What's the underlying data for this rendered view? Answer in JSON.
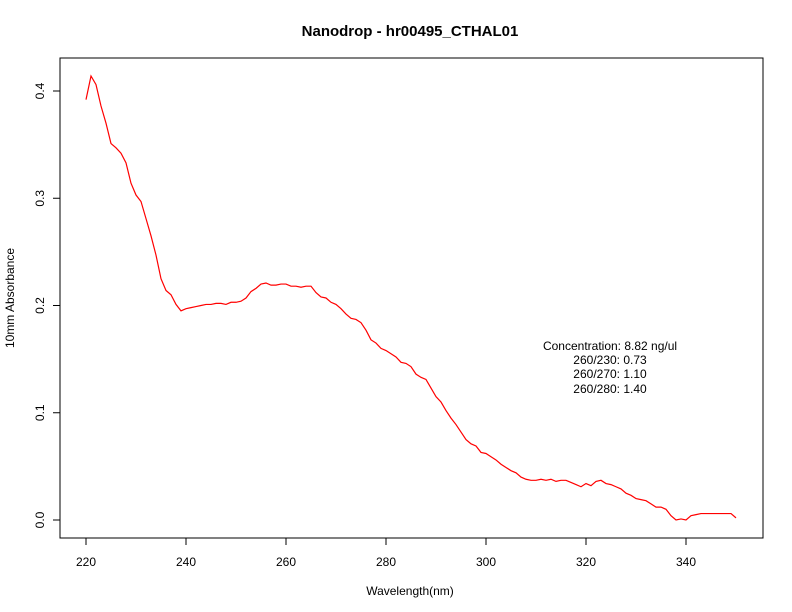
{
  "chart_data": {
    "type": "line",
    "title": "Nanodrop - hr00495_CTHAL01",
    "xlabel": "Wavelength(nm)",
    "ylabel": "10mm Absorbance",
    "xlim": [
      220,
      350
    ],
    "ylim": [
      0.0,
      0.42
    ],
    "xticks": [
      220,
      240,
      260,
      280,
      300,
      320,
      340
    ],
    "xtick_labels": [
      "220",
      "240",
      "260",
      "280",
      "300",
      "320",
      "340"
    ],
    "yticks": [
      0.0,
      0.1,
      0.2,
      0.3,
      0.4
    ],
    "ytick_labels": [
      "0.0",
      "0.1",
      "0.2",
      "0.3",
      "0.4"
    ],
    "grid": false,
    "line_color": "#ff0000",
    "annotation": [
      "Concentration: 8.82 ng/ul",
      "260/230: 0.73",
      "260/270: 1.10",
      "260/280: 1.40"
    ],
    "series": [
      {
        "x": [
          220,
          221,
          222,
          223,
          224,
          225,
          226,
          227,
          228,
          229,
          230,
          231,
          232,
          233,
          234,
          235,
          236,
          237,
          238,
          239,
          240,
          241,
          242,
          243,
          244,
          245,
          246,
          247,
          248,
          249,
          250,
          251,
          252,
          253,
          254,
          255,
          256,
          257,
          258,
          259,
          260,
          261,
          262,
          263,
          264,
          265,
          266,
          267,
          268,
          269,
          270,
          271,
          272,
          273,
          274,
          275,
          276,
          277,
          278,
          279,
          280,
          281,
          282,
          283,
          284,
          285,
          286,
          287,
          288,
          289,
          290,
          291,
          292,
          293,
          294,
          295,
          296,
          297,
          298,
          299,
          300,
          301,
          302,
          303,
          304,
          305,
          306,
          307,
          308,
          309,
          310,
          311,
          312,
          313,
          314,
          315,
          316,
          317,
          318,
          319,
          320,
          321,
          322,
          323,
          324,
          325,
          326,
          327,
          328,
          329,
          330,
          331,
          332,
          333,
          334,
          335,
          336,
          337,
          338,
          339,
          340,
          341,
          342,
          343,
          344,
          345,
          346,
          347,
          348,
          349,
          350
        ],
        "y": [
          0.392,
          0.414,
          0.406,
          0.386,
          0.37,
          0.351,
          0.347,
          0.342,
          0.333,
          0.314,
          0.303,
          0.297,
          0.281,
          0.265,
          0.247,
          0.225,
          0.214,
          0.21,
          0.201,
          0.195,
          0.197,
          0.198,
          0.199,
          0.2,
          0.201,
          0.201,
          0.202,
          0.202,
          0.201,
          0.203,
          0.203,
          0.204,
          0.207,
          0.213,
          0.216,
          0.22,
          0.221,
          0.219,
          0.219,
          0.22,
          0.22,
          0.218,
          0.218,
          0.217,
          0.218,
          0.218,
          0.212,
          0.208,
          0.207,
          0.203,
          0.201,
          0.197,
          0.192,
          0.188,
          0.187,
          0.184,
          0.177,
          0.168,
          0.165,
          0.16,
          0.158,
          0.155,
          0.152,
          0.147,
          0.146,
          0.143,
          0.136,
          0.133,
          0.131,
          0.123,
          0.115,
          0.11,
          0.102,
          0.095,
          0.089,
          0.082,
          0.075,
          0.071,
          0.069,
          0.063,
          0.062,
          0.059,
          0.056,
          0.052,
          0.049,
          0.046,
          0.044,
          0.04,
          0.038,
          0.037,
          0.037,
          0.038,
          0.037,
          0.038,
          0.036,
          0.037,
          0.037,
          0.035,
          0.033,
          0.031,
          0.034,
          0.032,
          0.036,
          0.037,
          0.034,
          0.033,
          0.031,
          0.029,
          0.025,
          0.023,
          0.02,
          0.019,
          0.018,
          0.015,
          0.012,
          0.012,
          0.01,
          0.004,
          0.0,
          0.001,
          0.0,
          0.004,
          0.005,
          0.006,
          0.006,
          0.006,
          0.006,
          0.006,
          0.006,
          0.006,
          0.002
        ]
      }
    ]
  }
}
